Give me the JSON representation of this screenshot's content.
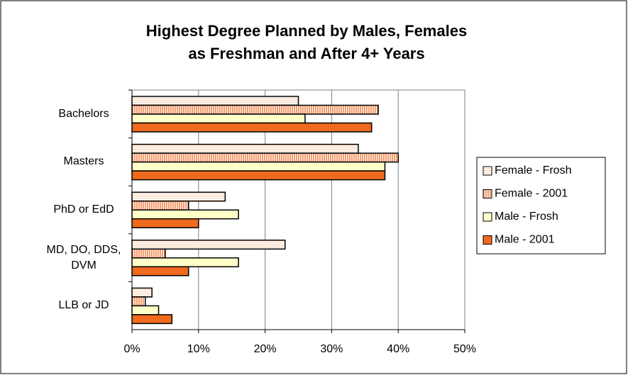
{
  "chart_data": {
    "type": "bar",
    "orientation": "horizontal",
    "title": [
      "Highest Degree Planned by Males, Females",
      "as Freshman and After 4+ Years"
    ],
    "categories": [
      "Bachelors",
      "Masters",
      "PhD or EdD",
      "MD, DO, DDS, DVM",
      "LLB or JD"
    ],
    "series": [
      {
        "name": "Female - Frosh",
        "color": "#fcd9c0",
        "pattern": "horizontal",
        "values": [
          25,
          34,
          14,
          23,
          3
        ]
      },
      {
        "name": "Female - 2001",
        "color": "#f4915c",
        "pattern": "vertical",
        "values": [
          37,
          40,
          8.5,
          5,
          2
        ]
      },
      {
        "name": "Male - Frosh",
        "color": "#ffffc8",
        "values": [
          26,
          38,
          16,
          16,
          4
        ]
      },
      {
        "name": "Male - 2001",
        "color": "#f06a1e",
        "values": [
          36,
          38,
          10,
          8.5,
          6
        ]
      }
    ],
    "xlim": [
      0,
      50
    ],
    "xticks": [
      {
        "value": 0,
        "label": "0%"
      },
      {
        "value": 10,
        "label": "10%"
      },
      {
        "value": 20,
        "label": "20%"
      },
      {
        "value": 30,
        "label": "30%"
      },
      {
        "value": 40,
        "label": "40%"
      },
      {
        "value": 50,
        "label": "50%"
      }
    ],
    "grid": true,
    "legend": "right"
  }
}
